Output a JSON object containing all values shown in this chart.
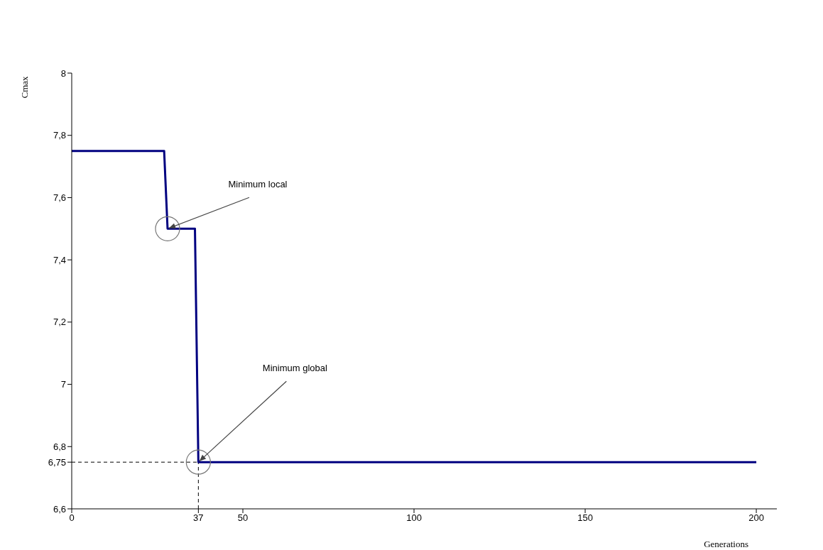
{
  "chart_data": {
    "type": "line",
    "xlabel": "Generations",
    "ylabel": "Cmax",
    "x": [
      0,
      27,
      28,
      36,
      37,
      200
    ],
    "series": [
      {
        "color": "#000080",
        "values": [
          7.75,
          7.75,
          7.5,
          7.5,
          6.75,
          6.75
        ]
      }
    ],
    "xlim": [
      0,
      206
    ],
    "xticks": [
      0,
      37,
      50,
      100,
      150,
      200
    ],
    "ylim": [
      6.6,
      8
    ],
    "yticks": [
      {
        "value": 6.6,
        "label": "6,6"
      },
      {
        "value": 6.75,
        "label": "6,75"
      },
      {
        "value": 6.8,
        "label": "6,8"
      },
      {
        "value": 7,
        "label": "7"
      },
      {
        "value": 7.2,
        "label": "7,2"
      },
      {
        "value": 7.4,
        "label": "7,4"
      },
      {
        "value": 7.6,
        "label": "7,6"
      },
      {
        "value": 7.8,
        "label": "7,8"
      },
      {
        "value": 8,
        "label": "8"
      }
    ],
    "ref_lines": [
      {
        "axis": "y",
        "value": 6.75,
        "line_style": "dashed",
        "color": "#000000"
      },
      {
        "axis": "x",
        "value": 37,
        "line_style": "dashed",
        "color": "#000000"
      }
    ],
    "annotations": [
      {
        "text": "Minimum local",
        "x": 28,
        "y": 7.5
      },
      {
        "text": "Minimum global",
        "x": 37,
        "y": 6.75
      }
    ],
    "grid": false,
    "legend": false,
    "marker": "none",
    "line_style": "solid"
  }
}
